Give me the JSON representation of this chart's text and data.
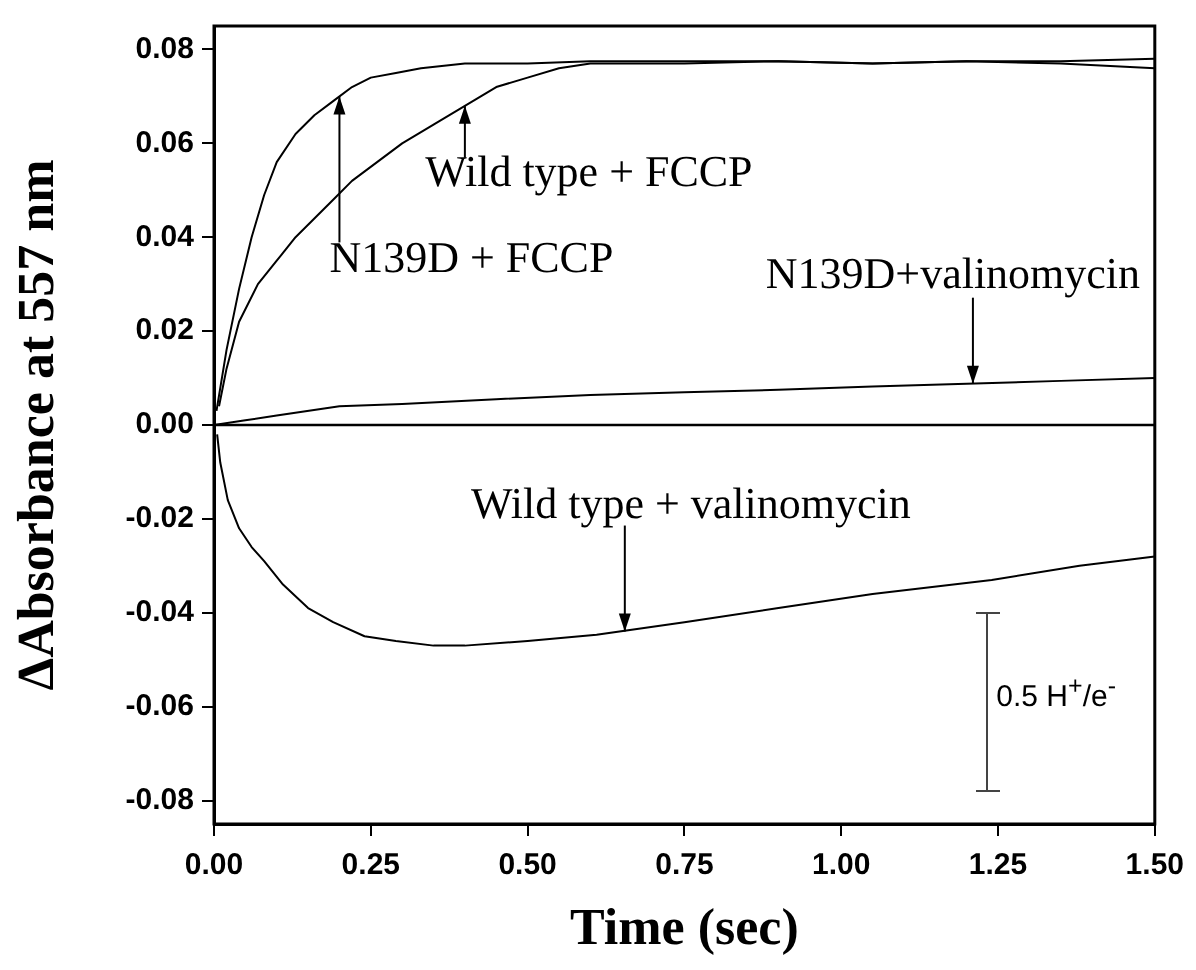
{
  "chart_data": {
    "type": "line",
    "xlabel": "Time (sec)",
    "ylabel": "ΔAbsorbance at 557 nm",
    "xlim": [
      0,
      1.5
    ],
    "ylim": [
      -0.085,
      0.085
    ],
    "xticks": [
      {
        "value": 0,
        "label": "0.00"
      },
      {
        "value": 0.25,
        "label": "0.25"
      },
      {
        "value": 0.5,
        "label": "0.50"
      },
      {
        "value": 0.75,
        "label": "0.75"
      },
      {
        "value": 1,
        "label": "1.00"
      },
      {
        "value": 1.25,
        "label": "1.25"
      },
      {
        "value": 1.5,
        "label": "1.50"
      }
    ],
    "yticks": [
      {
        "value": -0.08,
        "label": "-0.08"
      },
      {
        "value": -0.06,
        "label": "-0.06"
      },
      {
        "value": -0.04,
        "label": "-0.04"
      },
      {
        "value": -0.02,
        "label": "-0.02"
      },
      {
        "value": 0,
        "label": "0.00"
      },
      {
        "value": 0.02,
        "label": "0.02"
      },
      {
        "value": 0.04,
        "label": "0.04"
      },
      {
        "value": 0.06,
        "label": "0.06"
      },
      {
        "value": 0.08,
        "label": "0.08"
      }
    ],
    "marker": "none",
    "line_style": "solid",
    "series": [
      {
        "color": "#000000",
        "x": [
          0.004,
          0.02,
          0.04,
          0.06,
          0.08,
          0.1,
          0.13,
          0.16,
          0.19,
          0.22,
          0.25,
          0.29,
          0.33,
          0.4,
          0.5,
          0.6,
          0.75,
          0.9,
          1.05,
          1.2,
          1.35,
          1.5
        ],
        "values": [
          0.003,
          0.016,
          0.029,
          0.04,
          0.049,
          0.056,
          0.062,
          0.066,
          0.069,
          0.072,
          0.074,
          0.075,
          0.076,
          0.077,
          0.077,
          0.0775,
          0.0775,
          0.0775,
          0.077,
          0.0775,
          0.0775,
          0.078
        ]
      },
      {
        "color": "#000000",
        "x": [
          0.008,
          0.02,
          0.04,
          0.07,
          0.1,
          0.13,
          0.16,
          0.19,
          0.22,
          0.26,
          0.3,
          0.35,
          0.4,
          0.45,
          0.5,
          0.55,
          0.6,
          0.75,
          0.9,
          1.05,
          1.2,
          1.35,
          1.5
        ],
        "values": [
          0.004,
          0.012,
          0.022,
          0.03,
          0.035,
          0.04,
          0.044,
          0.048,
          0.052,
          0.056,
          0.06,
          0.064,
          0.068,
          0.072,
          0.074,
          0.076,
          0.077,
          0.077,
          0.0775,
          0.077,
          0.0775,
          0.077,
          0.076
        ]
      },
      {
        "color": "#000000",
        "x": [
          0,
          0.05,
          0.1,
          0.2,
          0.3,
          0.45,
          0.6,
          0.75,
          0.9,
          1.05,
          1.2,
          1.35,
          1.5
        ],
        "values": [
          0,
          0.001,
          0.002,
          0.004,
          0.0045,
          0.0055,
          0.0064,
          0.007,
          0.0075,
          0.0082,
          0.0088,
          0.0094,
          0.01
        ]
      },
      {
        "color": "#000000",
        "x": [
          0.005,
          0.01,
          0.022,
          0.04,
          0.06,
          0.08,
          0.11,
          0.15,
          0.19,
          0.24,
          0.29,
          0.35,
          0.4,
          0.5,
          0.61,
          0.75,
          0.9,
          1.05,
          1.24,
          1.38,
          1.5
        ],
        "values": [
          -0.002,
          -0.008,
          -0.016,
          -0.022,
          -0.026,
          -0.029,
          -0.034,
          -0.039,
          -0.042,
          -0.045,
          -0.046,
          -0.047,
          -0.047,
          -0.046,
          -0.0447,
          -0.042,
          -0.039,
          -0.036,
          -0.033,
          -0.03,
          -0.028
        ]
      }
    ],
    "ref_lines": [
      {
        "axis": "y",
        "value": 0,
        "color": "#000000"
      }
    ],
    "annotations": [
      {
        "text": "Wild type + FCCP",
        "x": 0.4,
        "y": 0.068
      },
      {
        "text": "N139D + FCCP",
        "x": 0.2,
        "y": 0.07
      },
      {
        "text": "N139D+valinomycin",
        "x": 1.21,
        "y": 0.0088
      },
      {
        "text": "Wild type + valinomycin",
        "x": 0.655,
        "y": -0.044
      },
      "0.5 H$^{+}$/e$^{-}$"
    ]
  }
}
